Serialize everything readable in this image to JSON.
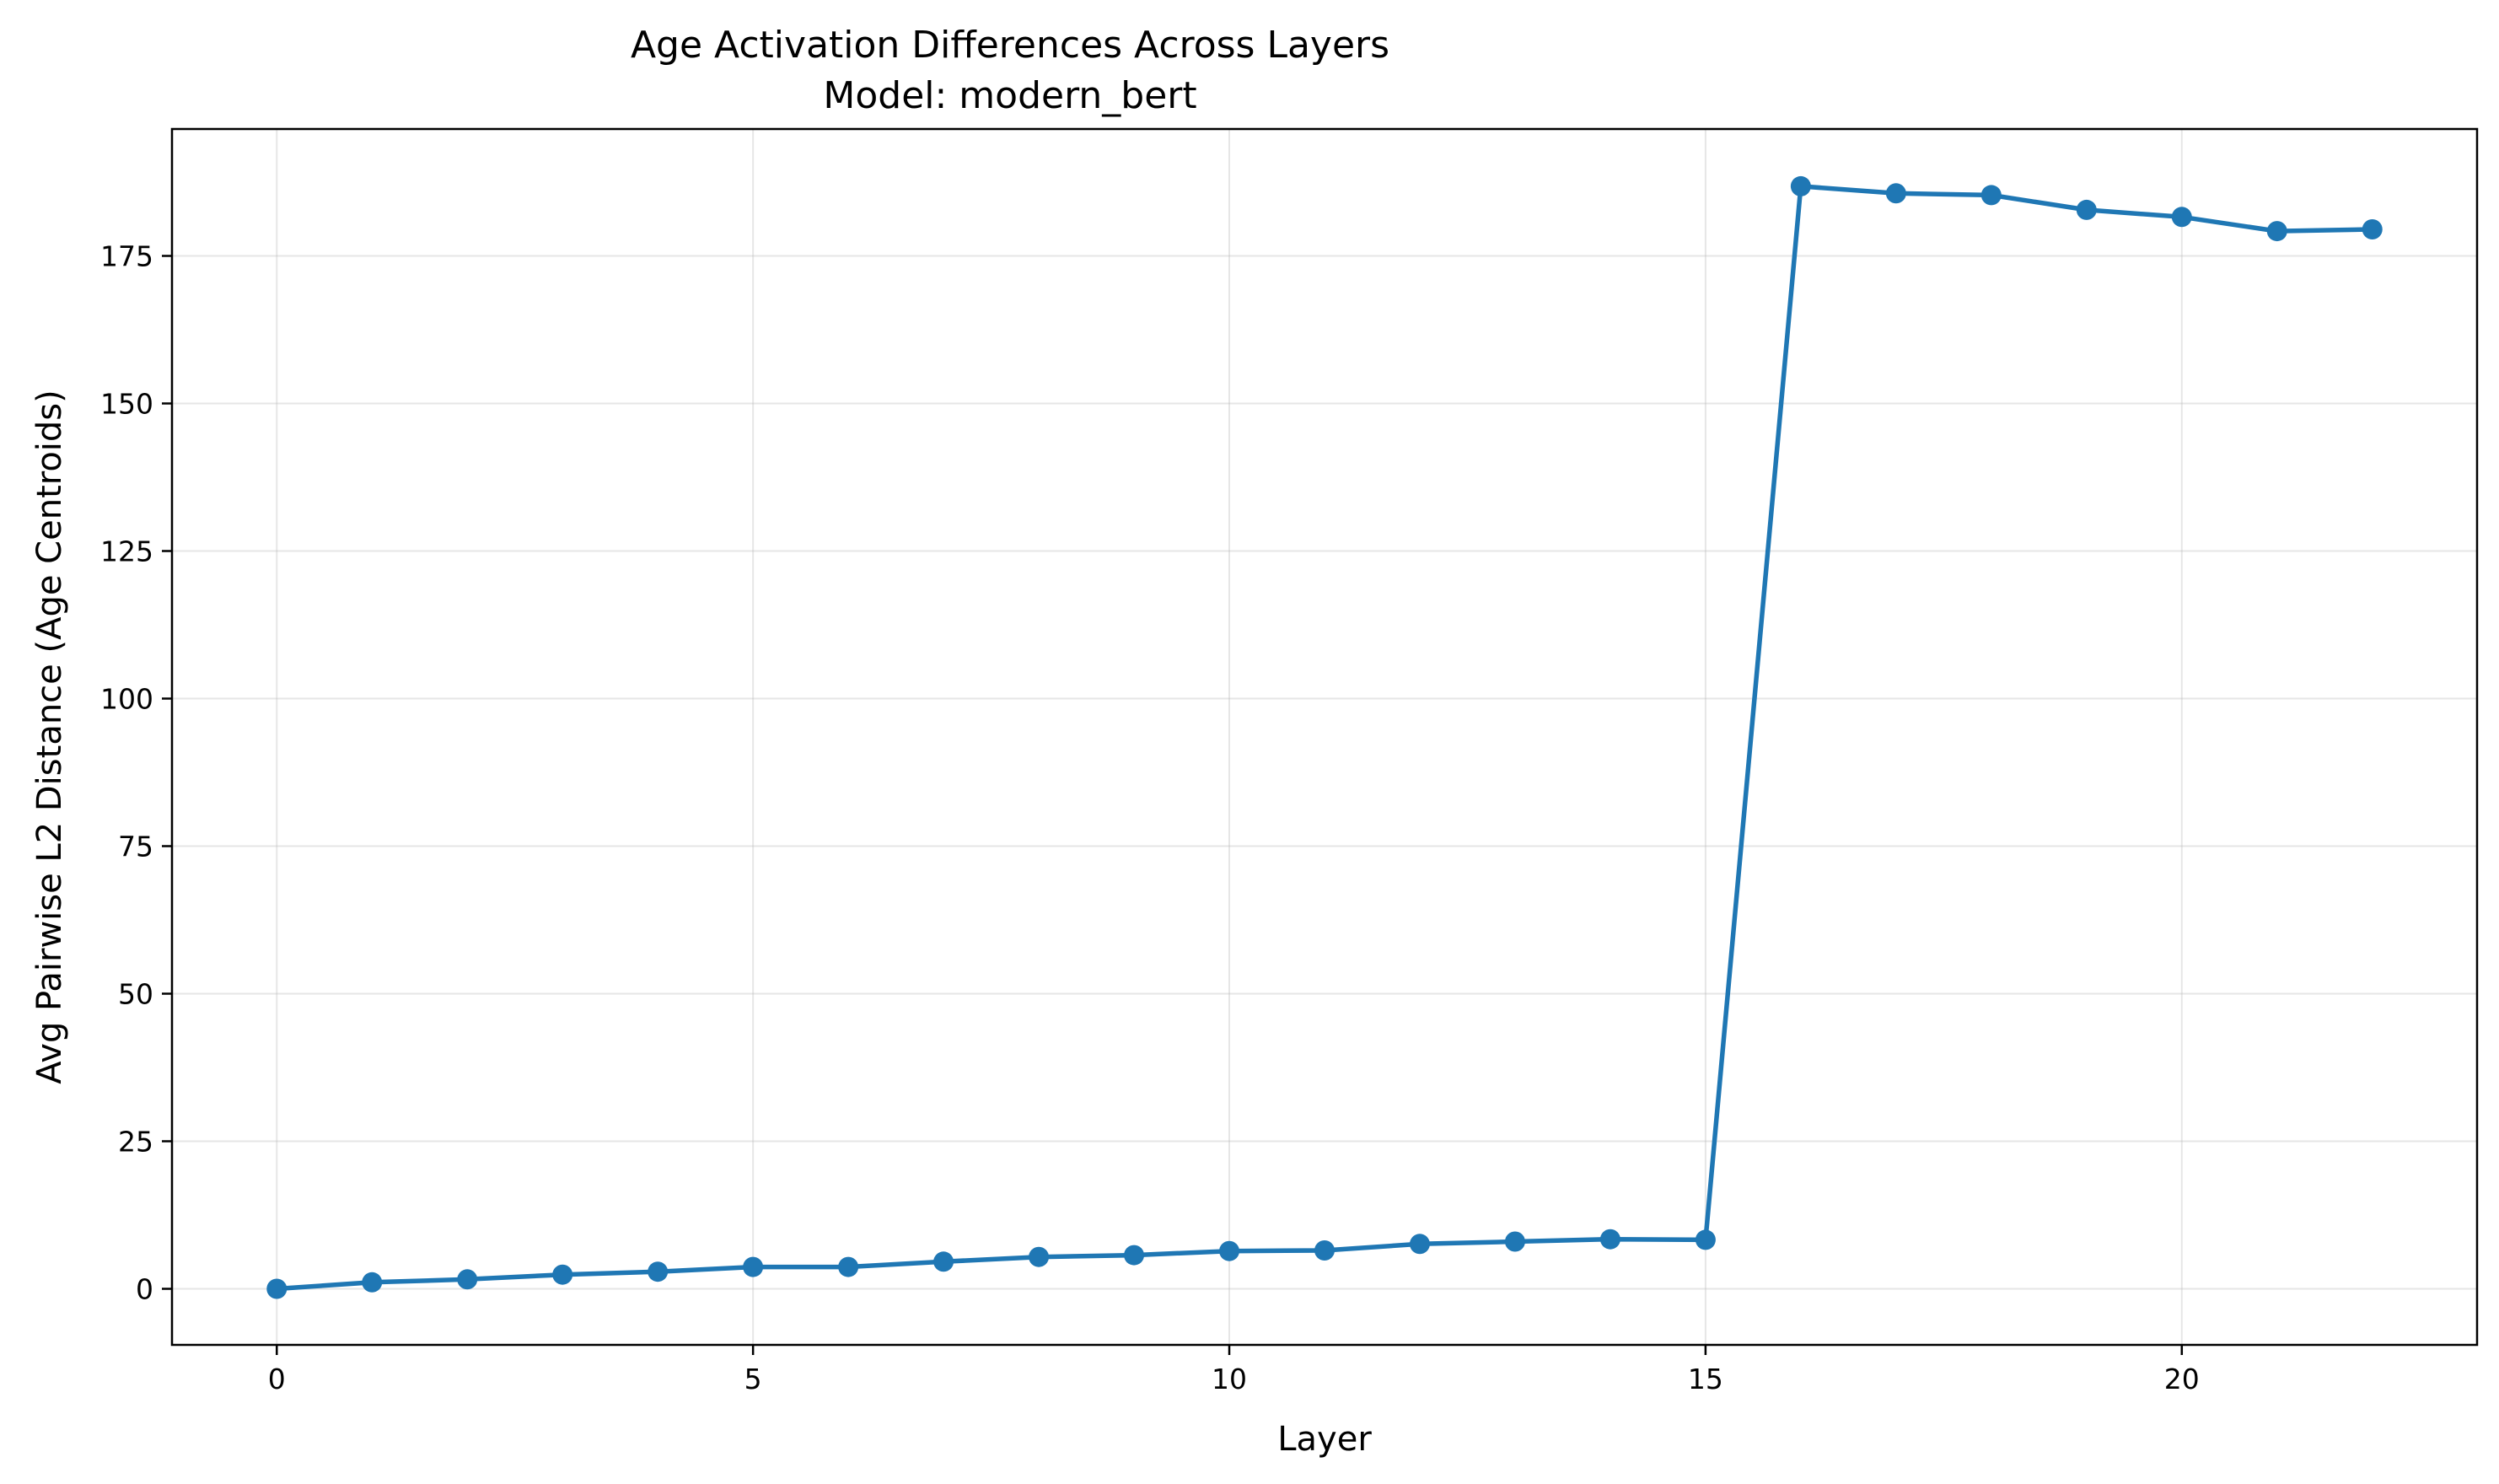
{
  "chart_data": {
    "type": "line",
    "title": "Age Activation Differences Across Layers",
    "subtitle": "Model: modern_bert",
    "xlabel": "Layer",
    "ylabel": "Avg Pairwise L2 Distance (Age Centroids)",
    "xlim": [
      -1.1,
      23.1
    ],
    "ylim": [
      -9.5,
      196.5
    ],
    "xticks": [
      0,
      5,
      10,
      15,
      20
    ],
    "yticks": [
      0,
      25,
      50,
      75,
      100,
      125,
      150,
      175
    ],
    "grid": true,
    "color": "#1f77b4",
    "x": [
      0,
      1,
      2,
      3,
      4,
      5,
      6,
      7,
      8,
      9,
      10,
      11,
      12,
      13,
      14,
      15,
      16,
      17,
      18,
      19,
      20,
      21,
      22
    ],
    "y": [
      0.0,
      1.1,
      1.6,
      2.4,
      2.9,
      3.7,
      3.7,
      4.6,
      5.4,
      5.7,
      6.4,
      6.5,
      7.6,
      8.0,
      8.4,
      8.3,
      186.8,
      185.6,
      185.3,
      182.8,
      181.6,
      179.2,
      179.5
    ]
  }
}
